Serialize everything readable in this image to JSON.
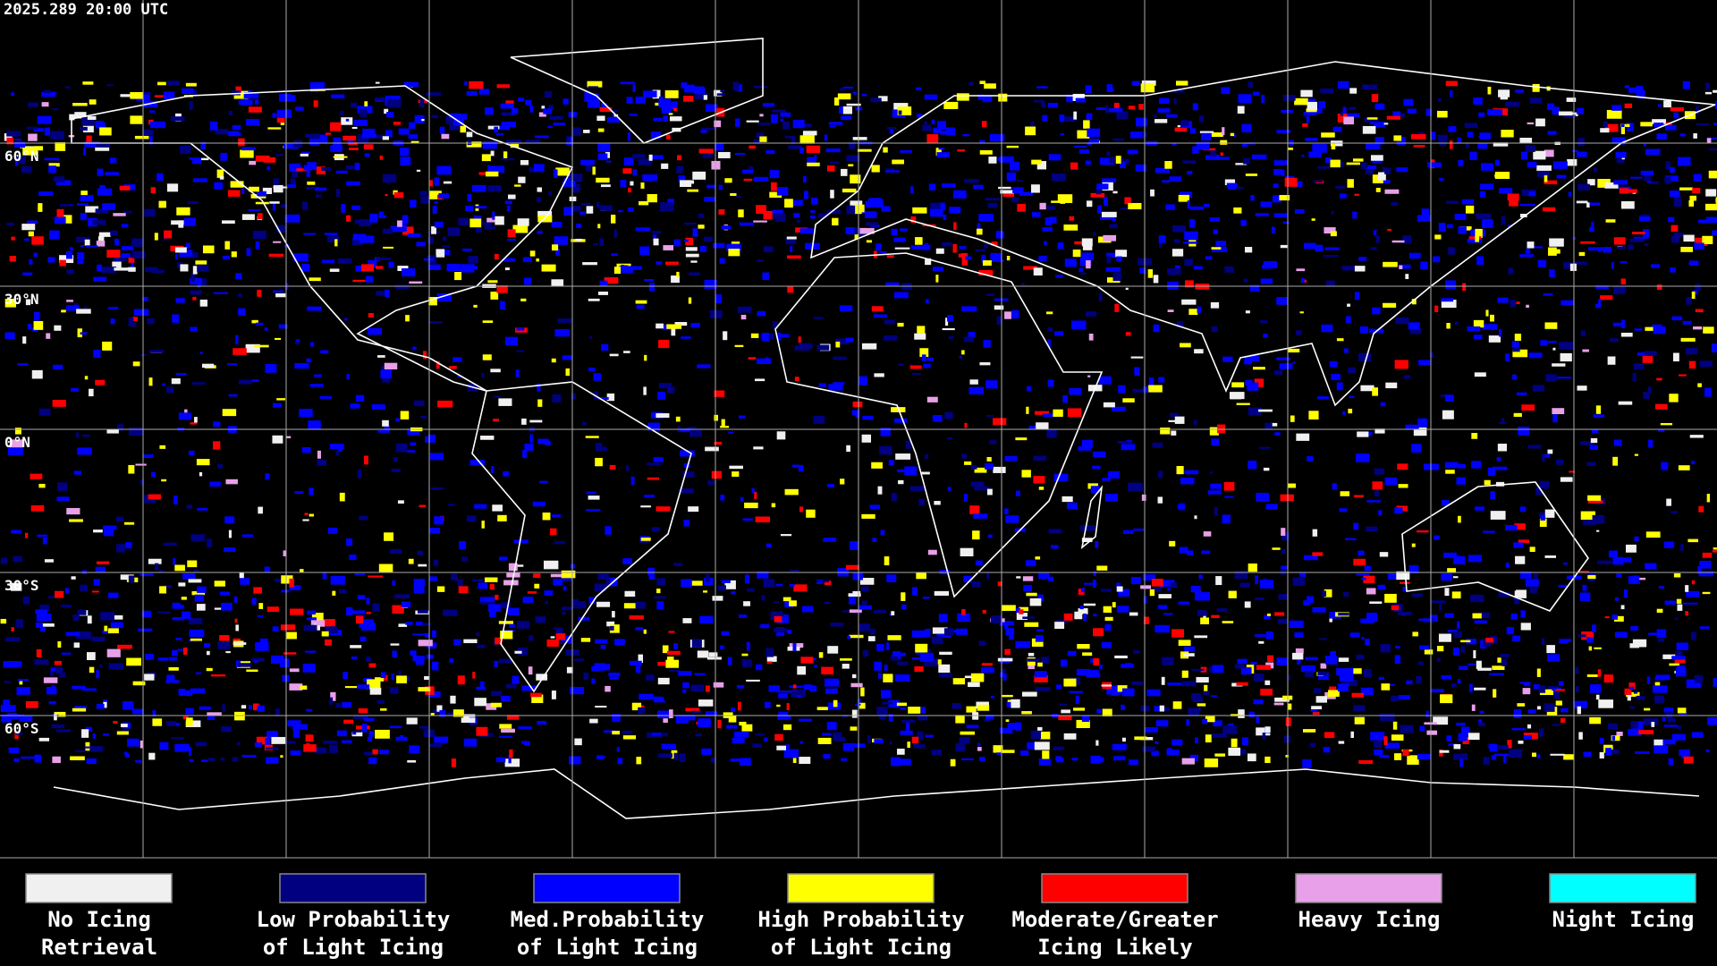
{
  "timestamp": "2025.289 20:00 UTC",
  "latitude_labels": [
    "60°N",
    "30°N",
    "0°N",
    "30°S",
    "60°S"
  ],
  "legend": [
    {
      "label": [
        "No Icing",
        "Retrieval"
      ],
      "color": "#f0f0f0"
    },
    {
      "label": [
        "Low Probability",
        "of Light Icing"
      ],
      "color": "#000080"
    },
    {
      "label": [
        "Med.Probability",
        "of Light Icing"
      ],
      "color": "#0000ff"
    },
    {
      "label": [
        "High Probability",
        "of Light Icing"
      ],
      "color": "#ffff00"
    },
    {
      "label": [
        "Moderate/Greater",
        "Icing Likely"
      ],
      "color": "#ff0000"
    },
    {
      "label": [
        "Heavy Icing"
      ],
      "color": "#e8a0e8"
    },
    {
      "label": [
        "Night Icing"
      ],
      "color": "#00ffff"
    }
  ]
}
